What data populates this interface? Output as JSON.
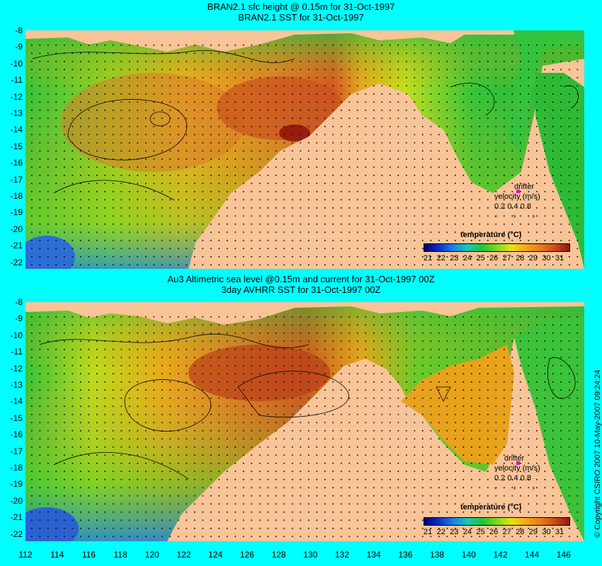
{
  "top_panel": {
    "title_line1": "BRAN2.1 sfc height @ 0.15m for 31-Oct-1997",
    "title_line2": "BRAN2.1 SST for 31-Oct-1997",
    "legend": {
      "title": "temperature (°C)",
      "ticks": [
        "21",
        "22",
        "23",
        "24",
        "25",
        "26",
        "27",
        "28",
        "29",
        "30",
        "31"
      ]
    },
    "drifter": {
      "line1": "drifter",
      "line2": "velocity (m/s)",
      "line3": "0.2 0.4 0.8"
    }
  },
  "bottom_panel": {
    "title_line1": "Au3 Altimetric sea level  @0.15m and current for 31-Oct-1997 00Z",
    "title_line2": "3day AVHRR SST for 31-Oct-1997 00Z",
    "legend": {
      "title": "temperature (°C)",
      "ticks": [
        "21",
        "22",
        "23",
        "24",
        "25",
        "26",
        "27",
        "28",
        "29",
        "30",
        "31"
      ]
    },
    "drifter": {
      "line1": "drifter",
      "line2": "velocity (m/s)",
      "line3": "0.2 0.4 0.8"
    }
  },
  "axes": {
    "y_labels": [
      "-8",
      "-9",
      "-10",
      "-11",
      "-12",
      "-13",
      "-14",
      "-15",
      "-16",
      "-17",
      "-18",
      "-19",
      "-20",
      "-21",
      "-22"
    ],
    "x_labels": [
      "112",
      "114",
      "116",
      "118",
      "120",
      "122",
      "124",
      "126",
      "128",
      "130",
      "132",
      "134",
      "136",
      "138",
      "140",
      "142",
      "144",
      "146"
    ]
  },
  "copyright": "© Copyright CSIRO 2007  10-May-2007 09:24:24",
  "colors": {
    "background": "#00ffff",
    "land": "#f9c497",
    "scale": [
      "#00006e",
      "#0a2fc8",
      "#1e7fe6",
      "#18c8b4",
      "#22c23c",
      "#7ed820",
      "#e8e01a",
      "#f2a818",
      "#e67d1e",
      "#cc4a1a",
      "#8e1a0a"
    ]
  }
}
